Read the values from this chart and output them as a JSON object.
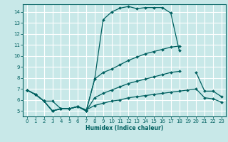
{
  "xlabel": "Humidex (Indice chaleur)",
  "bg_color": "#c8e8e8",
  "grid_color": "#ffffff",
  "line_color": "#006060",
  "xlim": [
    -0.5,
    23.5
  ],
  "ylim": [
    4.5,
    14.7
  ],
  "yticks": [
    5,
    6,
    7,
    8,
    9,
    10,
    11,
    12,
    13,
    14
  ],
  "xticks": [
    0,
    1,
    2,
    3,
    4,
    5,
    6,
    7,
    8,
    9,
    10,
    11,
    12,
    13,
    14,
    15,
    16,
    17,
    18,
    19,
    20,
    21,
    22,
    23
  ],
  "curve1_x": [
    0,
    1,
    2,
    3,
    4,
    5,
    6,
    7,
    8,
    9,
    10,
    11,
    12,
    13,
    14,
    15,
    16,
    17,
    18,
    19,
    20,
    21,
    22,
    23
  ],
  "curve1_y": [
    6.9,
    6.5,
    5.9,
    5.9,
    5.2,
    5.2,
    5.4,
    5.1,
    5.5,
    5.7,
    5.9,
    6.0,
    6.2,
    6.3,
    6.4,
    6.5,
    6.6,
    6.7,
    6.8,
    6.9,
    7.0,
    6.2,
    6.1,
    5.8
  ],
  "curve2_x": [
    0,
    1,
    2,
    3,
    4,
    5,
    6,
    7,
    8,
    9,
    10,
    11,
    12,
    13,
    14,
    15,
    16,
    17,
    18,
    19,
    20,
    21,
    22,
    23
  ],
  "curve2_y": [
    6.9,
    6.5,
    5.9,
    5.0,
    5.2,
    5.2,
    5.4,
    5.0,
    7.9,
    13.3,
    14.0,
    14.35,
    14.5,
    14.3,
    14.4,
    14.4,
    14.4,
    13.9,
    10.5,
    null,
    null,
    null,
    null,
    null
  ],
  "curve3_x": [
    0,
    1,
    2,
    3,
    4,
    5,
    6,
    7,
    8,
    9,
    10,
    11,
    12,
    13,
    14,
    15,
    16,
    17,
    18,
    19,
    20,
    21,
    22,
    23
  ],
  "curve3_y": [
    6.9,
    6.5,
    5.9,
    5.0,
    5.2,
    5.2,
    5.4,
    5.0,
    7.9,
    8.5,
    8.8,
    9.2,
    9.6,
    9.9,
    10.2,
    10.4,
    10.6,
    10.8,
    10.9,
    null,
    null,
    null,
    null,
    null
  ],
  "curve4_x": [
    0,
    1,
    2,
    3,
    4,
    5,
    6,
    7,
    8,
    9,
    10,
    11,
    12,
    13,
    14,
    15,
    16,
    17,
    18,
    19,
    20,
    21,
    22,
    23
  ],
  "curve4_y": [
    6.9,
    6.5,
    5.9,
    5.0,
    5.2,
    5.2,
    5.4,
    5.0,
    6.2,
    6.6,
    6.9,
    7.2,
    7.5,
    7.7,
    7.9,
    8.1,
    8.3,
    8.5,
    8.6,
    null,
    8.5,
    6.8,
    6.8,
    6.3
  ]
}
